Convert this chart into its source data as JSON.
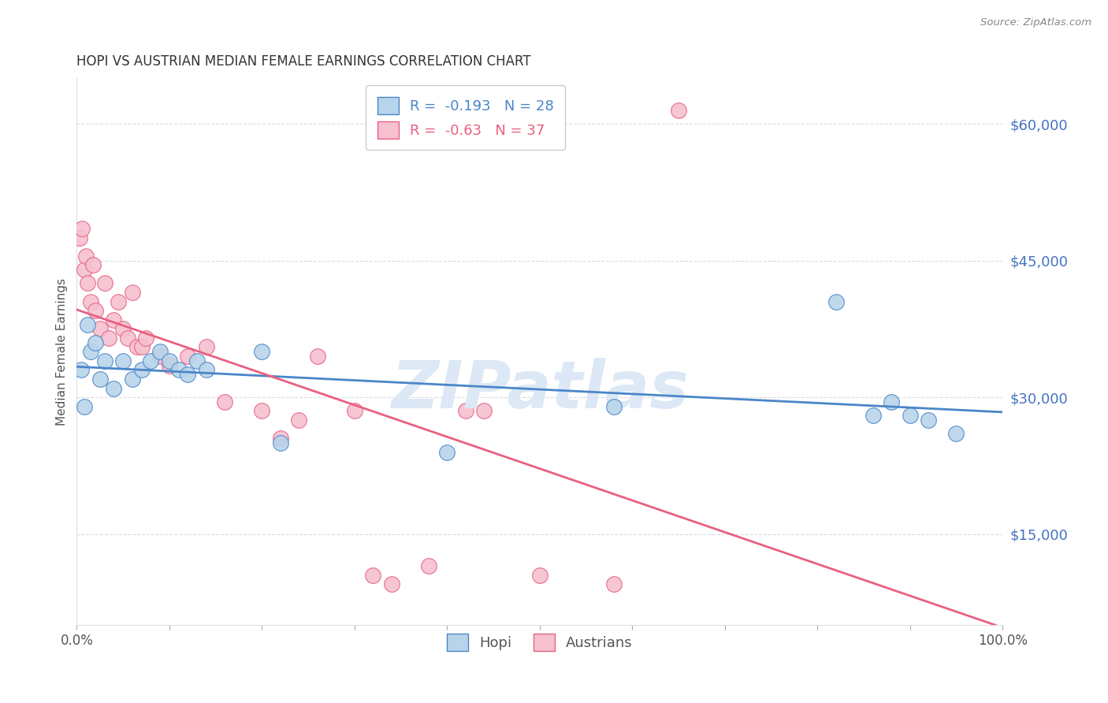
{
  "title": "HOPI VS AUSTRIAN MEDIAN FEMALE EARNINGS CORRELATION CHART",
  "source": "Source: ZipAtlas.com",
  "ylabel": "Median Female Earnings",
  "xlim": [
    0,
    1
  ],
  "ylim": [
    5000,
    65000
  ],
  "hopi_R": -0.193,
  "hopi_N": 28,
  "austrians_R": -0.63,
  "austrians_N": 37,
  "hopi_color": "#b8d4ea",
  "hopi_line_color": "#4a86c8",
  "austrians_color": "#f5c0d0",
  "austrians_line_color": "#e86080",
  "watermark": "ZIPatlas",
  "watermark_color": "#dce8f5",
  "hopi_x": [
    0.005,
    0.008,
    0.012,
    0.015,
    0.02,
    0.025,
    0.03,
    0.04,
    0.05,
    0.06,
    0.07,
    0.08,
    0.09,
    0.1,
    0.11,
    0.12,
    0.13,
    0.14,
    0.2,
    0.22,
    0.4,
    0.58,
    0.82,
    0.86,
    0.88,
    0.9,
    0.92,
    0.95
  ],
  "hopi_y": [
    33000,
    29000,
    38000,
    35000,
    36000,
    32000,
    34000,
    31000,
    34000,
    32000,
    33000,
    34000,
    35000,
    34000,
    33000,
    32500,
    34000,
    33000,
    35000,
    25000,
    24000,
    29000,
    40500,
    28000,
    29500,
    28000,
    27500,
    26000
  ],
  "austrians_x": [
    0.003,
    0.006,
    0.008,
    0.01,
    0.012,
    0.015,
    0.018,
    0.02,
    0.025,
    0.03,
    0.035,
    0.04,
    0.045,
    0.05,
    0.055,
    0.06,
    0.065,
    0.07,
    0.075,
    0.09,
    0.1,
    0.12,
    0.14,
    0.16,
    0.2,
    0.22,
    0.24,
    0.26,
    0.3,
    0.32,
    0.34,
    0.38,
    0.42,
    0.44,
    0.5,
    0.58,
    0.65
  ],
  "austrians_y": [
    47500,
    48500,
    44000,
    45500,
    42500,
    40500,
    44500,
    39500,
    37500,
    42500,
    36500,
    38500,
    40500,
    37500,
    36500,
    41500,
    35500,
    35500,
    36500,
    34500,
    33500,
    34500,
    35500,
    29500,
    28500,
    25500,
    27500,
    34500,
    28500,
    10500,
    9500,
    11500,
    28500,
    28500,
    10500,
    9500,
    61500
  ],
  "ytick_values": [
    15000,
    30000,
    45000,
    60000
  ],
  "ytick_labels": [
    "$15,000",
    "$30,000",
    "$45,000",
    "$60,000"
  ]
}
